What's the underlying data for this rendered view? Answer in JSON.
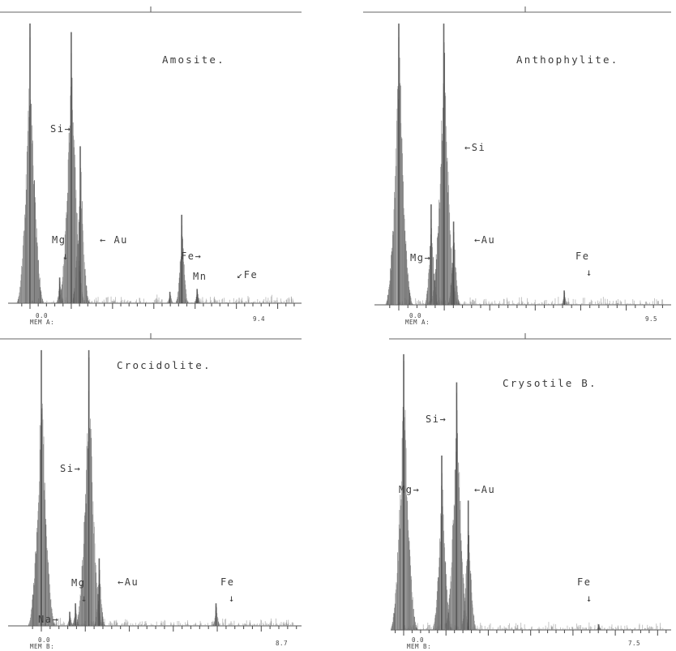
{
  "chart_data": [
    {
      "type": "bar",
      "title": "Amosite.",
      "mem_label": "MEM A:",
      "x_start_label": "0.0",
      "x_end_label": "9.4",
      "peaks": [
        {
          "x": 0.0,
          "y": 98
        },
        {
          "x": 1.25,
          "y": 9
        },
        {
          "x": 1.74,
          "y": 95
        },
        {
          "x": 2.12,
          "y": 55
        },
        {
          "x": 5.9,
          "y": 4
        },
        {
          "x": 6.4,
          "y": 31
        },
        {
          "x": 7.05,
          "y": 5
        }
      ],
      "annotations": [
        {
          "id": "si",
          "text": "Si→"
        },
        {
          "id": "mg",
          "text": "Mg"
        },
        {
          "id": "mg_arrow",
          "text": "↓"
        },
        {
          "id": "au",
          "text": "← Au"
        },
        {
          "id": "fe1",
          "text": "Fe→"
        },
        {
          "id": "mn",
          "text": "Mn"
        },
        {
          "id": "fe2",
          "text": "↙Fe"
        }
      ]
    },
    {
      "type": "bar",
      "title": "Anthophylite.",
      "mem_label": "MEM A:",
      "x_start_label": "0.0",
      "x_end_label": "9.5",
      "peaks": [
        {
          "x": 0.0,
          "y": 98
        },
        {
          "x": 1.25,
          "y": 35
        },
        {
          "x": 1.74,
          "y": 98
        },
        {
          "x": 2.12,
          "y": 29
        },
        {
          "x": 6.4,
          "y": 5
        }
      ],
      "annotations": [
        {
          "id": "si",
          "text": "←Si"
        },
        {
          "id": "mg",
          "text": "Mg→"
        },
        {
          "id": "au",
          "text": "←Au"
        },
        {
          "id": "fe",
          "text": "Fe"
        },
        {
          "id": "fe_arrow",
          "text": "↓"
        }
      ]
    },
    {
      "type": "bar",
      "title": "Crocidolite.",
      "mem_label": "MEM B:",
      "x_start_label": "0.0",
      "x_end_label": "8.7",
      "peaks": [
        {
          "x": 0.0,
          "y": 98
        },
        {
          "x": 1.04,
          "y": 5
        },
        {
          "x": 1.25,
          "y": 8
        },
        {
          "x": 1.74,
          "y": 98
        },
        {
          "x": 2.12,
          "y": 24
        },
        {
          "x": 6.4,
          "y": 8
        }
      ],
      "annotations": [
        {
          "id": "si",
          "text": "Si→"
        },
        {
          "id": "mg",
          "text": "Mg"
        },
        {
          "id": "mg_arrow",
          "text": "↓"
        },
        {
          "id": "au",
          "text": "←Au"
        },
        {
          "id": "fe",
          "text": "Fe"
        },
        {
          "id": "fe_arrow",
          "text": "↓"
        },
        {
          "id": "na",
          "text": "Na→"
        }
      ]
    },
    {
      "type": "bar",
      "title": "Crysotile B.",
      "mem_label": "MEM B:",
      "x_start_label": "0.0",
      "x_end_label": "7.5",
      "peaks": [
        {
          "x": 0.0,
          "y": 98
        },
        {
          "x": 1.25,
          "y": 62
        },
        {
          "x": 1.74,
          "y": 88
        },
        {
          "x": 2.12,
          "y": 46
        },
        {
          "x": 6.4,
          "y": 2
        }
      ],
      "annotations": [
        {
          "id": "si",
          "text": "Si→"
        },
        {
          "id": "mg",
          "text": "Mg→"
        },
        {
          "id": "au",
          "text": "←Au"
        },
        {
          "id": "fe",
          "text": "Fe"
        },
        {
          "id": "fe_arrow",
          "text": "↓"
        }
      ]
    }
  ]
}
